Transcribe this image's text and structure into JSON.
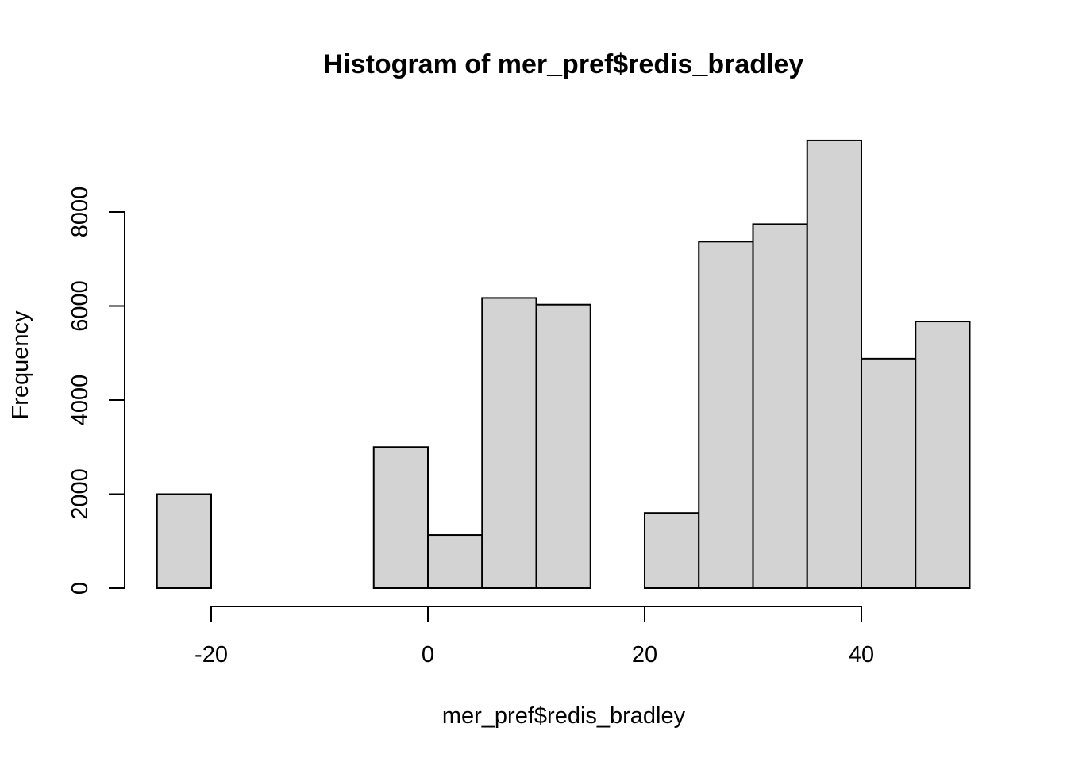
{
  "chart_data": {
    "type": "bar",
    "title": "Histogram of mer_pref$redis_bradley",
    "xlabel": "mer_pref$redis_bradley",
    "ylabel": "Frequency",
    "bins": [
      {
        "start": -25,
        "end": -20,
        "count": 2000
      },
      {
        "start": -20,
        "end": -15,
        "count": 0
      },
      {
        "start": -15,
        "end": -10,
        "count": 0
      },
      {
        "start": -10,
        "end": -5,
        "count": 0
      },
      {
        "start": -5,
        "end": 0,
        "count": 3000
      },
      {
        "start": 0,
        "end": 5,
        "count": 1130
      },
      {
        "start": 5,
        "end": 10,
        "count": 6170
      },
      {
        "start": 10,
        "end": 15,
        "count": 6030
      },
      {
        "start": 15,
        "end": 20,
        "count": 0
      },
      {
        "start": 20,
        "end": 25,
        "count": 1600
      },
      {
        "start": 25,
        "end": 30,
        "count": 7370
      },
      {
        "start": 30,
        "end": 35,
        "count": 7740
      },
      {
        "start": 35,
        "end": 40,
        "count": 9520
      },
      {
        "start": 40,
        "end": 45,
        "count": 4880
      },
      {
        "start": 45,
        "end": 50,
        "count": 5670
      }
    ],
    "x_ticks": [
      -20,
      0,
      20,
      40
    ],
    "y_ticks": [
      0,
      2000,
      4000,
      6000,
      8000
    ],
    "x_tick_labels": [
      "-20",
      "0",
      "20",
      "40"
    ],
    "y_tick_labels": [
      "0",
      "2000",
      "4000",
      "6000",
      "8000"
    ],
    "xlim": [
      -25,
      50
    ],
    "ylim": [
      0,
      9520
    ],
    "bar_fill": "#d3d3d3",
    "bar_stroke": "#000000",
    "grid": false,
    "legend": "none"
  }
}
